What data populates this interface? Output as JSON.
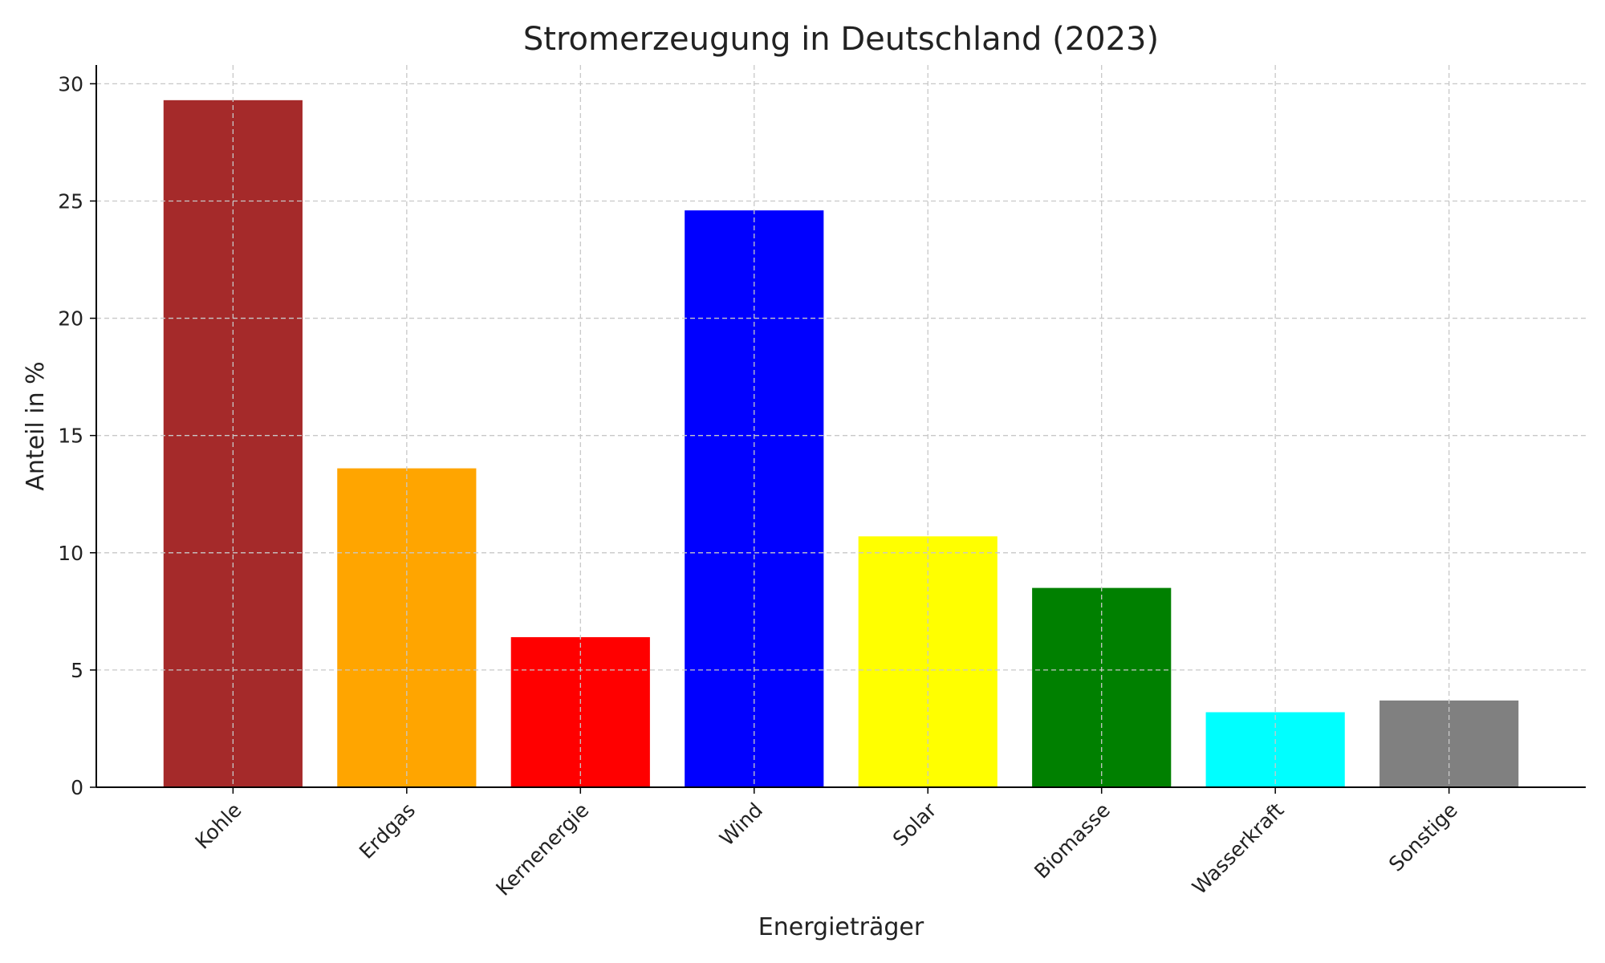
{
  "chart_data": {
    "type": "bar",
    "title": "Stromerzeugung in Deutschland (2023)",
    "xlabel": "Energieträger",
    "ylabel": "Anteil in %",
    "categories": [
      "Kohle",
      "Erdgas",
      "Kernenergie",
      "Wind",
      "Solar",
      "Biomasse",
      "Wasserkraft",
      "Sonstige"
    ],
    "values": [
      29.3,
      13.6,
      6.4,
      24.6,
      10.7,
      8.5,
      3.2,
      3.7
    ],
    "colors": [
      "#a52a2a",
      "#ffa500",
      "#ff0000",
      "#0000ff",
      "#ffff00",
      "#008000",
      "#00ffff",
      "#808080"
    ],
    "ylim": [
      0,
      30.8
    ],
    "yticks": [
      0,
      5,
      10,
      15,
      20,
      25,
      30
    ],
    "grid": true,
    "grid_style": "dashed"
  }
}
